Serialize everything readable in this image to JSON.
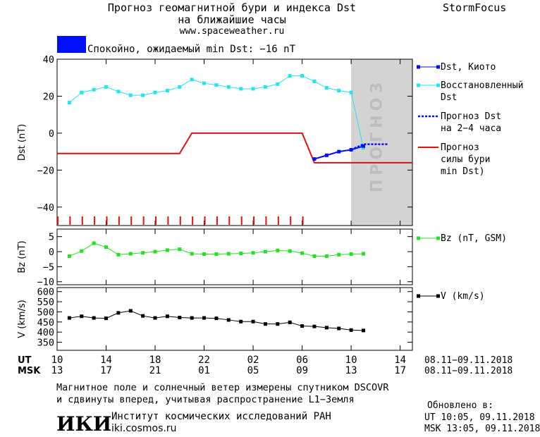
{
  "header": {
    "title_line1": "Прогноз геомагнитной бури и индекса Dst",
    "title_line2": "на ближайшие часы",
    "url": "www.spaceweather.ru",
    "brand": "StormFocus"
  },
  "status": {
    "text": "Спокойно, ожидаемый min Dst: −16 nT",
    "color": "#0010ff"
  },
  "colors": {
    "dst_kyoto": "#0010ff",
    "dst_restored": "#22e5f0",
    "dst_forecast": "#0010ff",
    "storm_forecast": "#e01010",
    "bz": "#22e322",
    "v": "#000000",
    "forecast_zone": "#d3d3d3"
  },
  "chart_data": [
    {
      "type": "line",
      "ylabel": "Dst (nT)",
      "ylim": [
        -50,
        40
      ],
      "yticks": [
        40,
        20,
        0,
        -20,
        -40
      ],
      "xlim": [
        0,
        29
      ],
      "forecast_zone_x": [
        24,
        28
      ],
      "forecast_zone_label": "ПРОГНОЗ",
      "series": [
        {
          "name": "Dst, Киото",
          "x": [
            21,
            22,
            23,
            24,
            25
          ],
          "y": [
            -14,
            -12,
            -10,
            -9,
            -7
          ]
        },
        {
          "name": "Восстановленный Dst",
          "x": [
            1,
            2,
            3,
            4,
            5,
            6,
            7,
            8,
            9,
            10,
            11,
            12,
            13,
            14,
            15,
            16,
            17,
            18,
            19,
            20,
            21,
            22,
            23,
            24,
            25
          ],
          "y": [
            16.5,
            22,
            23.5,
            25,
            22.5,
            20.5,
            20.5,
            22,
            23,
            25,
            29,
            27,
            26,
            25,
            24,
            24,
            25,
            26.5,
            31,
            31,
            28,
            24.5,
            23,
            22,
            -8
          ]
        },
        {
          "name": "Прогноз Dst на 2-4 часа",
          "x": [
            24,
            25,
            26,
            27
          ],
          "y": [
            -9,
            -6,
            -6,
            -6
          ]
        },
        {
          "name": "Прогноз силы бури (min Dst)",
          "x": [
            0,
            10,
            11,
            20,
            21,
            29
          ],
          "y": [
            -11,
            -11,
            0,
            0,
            -16,
            -16
          ]
        }
      ],
      "tick_marks_x": [
        0,
        1,
        2,
        3,
        4,
        5,
        6,
        7,
        8,
        9,
        10,
        11,
        12,
        13,
        14,
        15,
        16,
        17,
        18,
        19,
        20
      ]
    },
    {
      "type": "line",
      "ylabel": "Bz (nT)",
      "ylim": [
        -11,
        7.5
      ],
      "yticks": [
        5,
        0,
        -5,
        -10
      ],
      "series": [
        {
          "name": "Bz (nT, GSM)",
          "x": [
            1,
            2,
            3,
            4,
            5,
            6,
            7,
            8,
            9,
            10,
            11,
            12,
            13,
            14,
            15,
            16,
            17,
            18,
            19,
            20,
            21,
            22,
            23,
            24,
            25
          ],
          "y": [
            -1.5,
            0.2,
            2.8,
            1.5,
            -1.0,
            -0.7,
            -0.4,
            0.0,
            0.5,
            0.8,
            -0.7,
            -0.8,
            -0.8,
            -0.7,
            -0.6,
            -0.4,
            0.0,
            0.4,
            0.2,
            -0.5,
            -1.5,
            -1.5,
            -1.0,
            -0.8,
            -0.7
          ]
        }
      ]
    },
    {
      "type": "line",
      "ylabel": "V (km/s)",
      "ylim": [
        310,
        620
      ],
      "yticks": [
        600,
        550,
        500,
        450,
        400,
        350
      ],
      "series": [
        {
          "name": "V (km/s)",
          "x": [
            1,
            2,
            3,
            4,
            5,
            6,
            7,
            8,
            9,
            10,
            11,
            12,
            13,
            14,
            15,
            16,
            17,
            18,
            19,
            20,
            21,
            22,
            23,
            24,
            25
          ],
          "y": [
            470,
            478,
            470,
            468,
            495,
            505,
            480,
            470,
            478,
            472,
            470,
            470,
            468,
            460,
            452,
            452,
            440,
            440,
            448,
            430,
            428,
            422,
            418,
            410,
            408
          ]
        }
      ]
    }
  ],
  "xaxis": {
    "ut_label": "UT",
    "msk_label": "MSK",
    "ticks_x": [
      0,
      4,
      8,
      12,
      16,
      20,
      24,
      28
    ],
    "ut_ticks": [
      "10",
      "14",
      "18",
      "22",
      "02",
      "06",
      "10",
      "14"
    ],
    "msk_ticks": [
      "13",
      "17",
      "21",
      "01",
      "05",
      "09",
      "13",
      "17"
    ],
    "ut_range": "08.11−09.11.2018",
    "msk_range": "08.11−09.11.2018"
  },
  "footer": {
    "line1": "Магнитное поле и солнечный ветер измерены спутником DSCOVR",
    "line2": "и сдвинуты вперед, учитывая распространение L1−Земля",
    "institute": "Институт космических исследований РАН",
    "institute_url": "iki.cosmos.ru",
    "logo_text": "ИКИ",
    "updated_label": "Обновлено в:",
    "updated_ut": "UT  10:05, 09.11.2018",
    "updated_msk": "MSK 13:05, 09.11.2018"
  }
}
